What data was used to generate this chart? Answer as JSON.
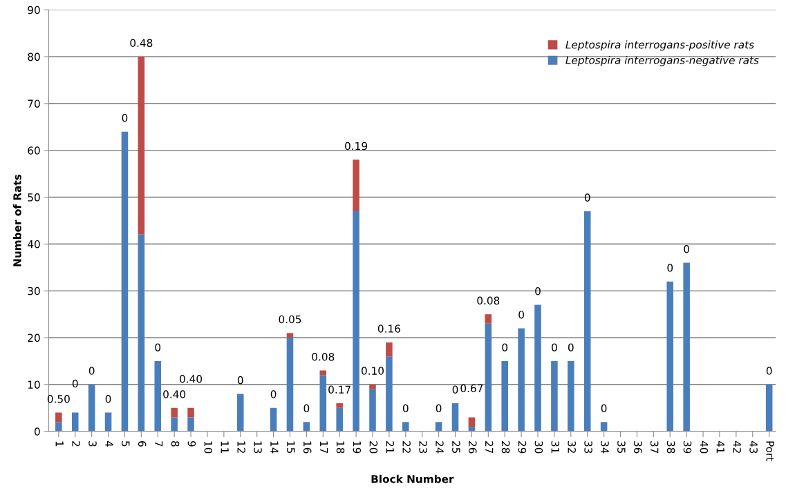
{
  "chart_data": {
    "type": "bar",
    "stacked": true,
    "xlabel": "Block Number",
    "ylabel": "Number of Rats",
    "categories": [
      "1",
      "2",
      "3",
      "4",
      "5",
      "6",
      "7",
      "8",
      "9",
      "10",
      "11",
      "12",
      "13",
      "14",
      "15",
      "16",
      "17",
      "18",
      "19",
      "20",
      "21",
      "22",
      "23",
      "24",
      "25",
      "26",
      "27",
      "28",
      "29",
      "30",
      "31",
      "32",
      "33",
      "34",
      "35",
      "36",
      "37",
      "38",
      "39",
      "40",
      "41",
      "42",
      "43",
      "Port"
    ],
    "series": [
      {
        "name": "Leptospira interrogans-negative rats",
        "color": "#4a7ebb",
        "values": [
          2,
          4,
          10,
          4,
          64,
          42,
          15,
          3,
          3,
          0,
          0,
          8,
          0,
          5,
          20,
          2,
          12,
          5,
          47,
          9,
          16,
          2,
          0,
          2,
          6,
          1,
          23,
          15,
          22,
          27,
          15,
          15,
          47,
          2,
          0,
          0,
          0,
          32,
          36,
          0,
          0,
          0,
          0,
          10
        ]
      },
      {
        "name": "Leptospira interrogans-positive rats",
        "color": "#be4b48",
        "values": [
          2,
          0,
          0,
          0,
          0,
          38,
          0,
          2,
          2,
          0,
          0,
          0,
          0,
          0,
          1,
          0,
          1,
          1,
          11,
          1,
          3,
          0,
          0,
          0,
          0,
          2,
          2,
          0,
          0,
          0,
          0,
          0,
          0,
          0,
          0,
          0,
          0,
          0,
          0,
          0,
          0,
          0,
          0,
          0
        ]
      }
    ],
    "value_labels": [
      "0.50",
      "0",
      "0",
      "0",
      "0",
      "0.48",
      "0",
      "0.40",
      "0.40",
      null,
      null,
      "0",
      null,
      "0",
      "0.05",
      "0",
      "0.08",
      "0.17",
      "0.19",
      "0.10",
      "0.16",
      "0",
      null,
      "0",
      "0",
      "0.67",
      "0.08",
      "0",
      "0",
      "0",
      "0",
      "0",
      "0",
      "0",
      null,
      null,
      null,
      "0",
      "0",
      null,
      null,
      null,
      null,
      "0"
    ],
    "ylim": [
      0,
      90
    ],
    "yticks": [
      0,
      10,
      20,
      30,
      40,
      50,
      60,
      70,
      80,
      90
    ],
    "grid": "y",
    "legend": "top right"
  }
}
